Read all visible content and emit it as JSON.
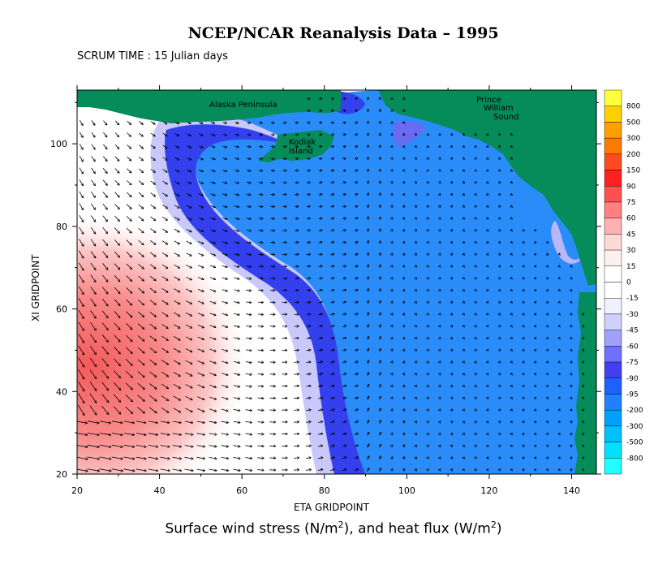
{
  "title": "NCEP/NCAR Reanalysis Data – 1995",
  "subtitle": "SCRUM TIME : 15 Julian days",
  "caption": {
    "part1": "Surface wind stress (N/m",
    "exp1": "2",
    "part2": "), and heat flux (W/m",
    "exp2": "2",
    "part3": ")"
  },
  "chart_data": {
    "type": "heatmap",
    "overlay": "vector field (wind stress arrows)",
    "xlabel": "ETA GRIDPOINT",
    "ylabel": "XI GRIDPOINT",
    "xlim": [
      20,
      146
    ],
    "ylim": [
      20,
      113
    ],
    "xticks": [
      20,
      40,
      60,
      80,
      100,
      120,
      140
    ],
    "yticks": [
      20,
      40,
      60,
      80,
      100
    ],
    "colorbar": {
      "levels": [
        "800",
        "500",
        "300",
        "200",
        "150",
        "90",
        "75",
        "60",
        "45",
        "30",
        "15",
        "0",
        "-15",
        "-30",
        "-45",
        "-60",
        "-75",
        "-90",
        "-95",
        "-200",
        "-300",
        "-500",
        "-800"
      ],
      "colors": [
        "#ffff40",
        "#ffd000",
        "#ffa000",
        "#ff7a00",
        "#ff4a20",
        "#ff2020",
        "#ff5050",
        "#ff8080",
        "#ffb0b0",
        "#ffd8d8",
        "#fff0f0",
        "#ffffff",
        "#ffffff",
        "#f0f0ff",
        "#d0d0ff",
        "#a0a0ff",
        "#7070ff",
        "#4040f0",
        "#2060ff",
        "#2080ff",
        "#00a0ff",
        "#00c0ff",
        "#00e0ff",
        "#20ffff"
      ]
    },
    "labels": [
      "Alaska Peninsula",
      "Kodiak",
      "Island",
      "Prince",
      "William",
      "Sound"
    ],
    "colors": {
      "land": "#058c5a",
      "ocean_negative": "#2a8cf8",
      "cooling_band": "#3440ee",
      "warm": "#ff6060"
    }
  }
}
